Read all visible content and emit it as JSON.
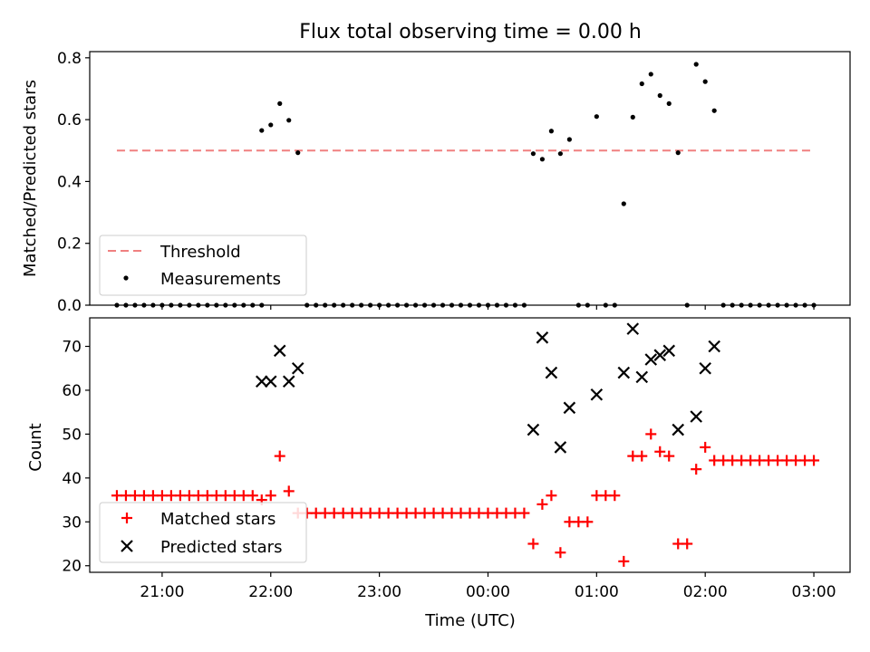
{
  "chart_data": [
    {
      "type": "scatter",
      "title": "Flux total observing time = 0.00 h",
      "xlabel": "",
      "ylabel": "Matched/Predicted stars",
      "xlim": [
        "20:20",
        "03:20"
      ],
      "ylim": [
        0,
        0.82
      ],
      "yticks": [
        0.0,
        0.2,
        0.4,
        0.6,
        0.8
      ],
      "ytick_labels": [
        "0.0",
        "0.2",
        "0.4",
        "0.6",
        "0.8"
      ],
      "legend": {
        "position": "lower-left",
        "entries": [
          "Threshold",
          "Measurements"
        ]
      },
      "threshold": {
        "name": "Threshold",
        "value": 0.5,
        "x_start": "20:35",
        "x_end": "03:00",
        "color": "#f08080"
      },
      "series": [
        {
          "name": "Measurements",
          "marker": "dot",
          "color": "#000000",
          "points": [
            [
              "20:35",
              0
            ],
            [
              "20:40",
              0
            ],
            [
              "20:45",
              0
            ],
            [
              "20:50",
              0
            ],
            [
              "20:55",
              0
            ],
            [
              "21:00",
              0
            ],
            [
              "21:05",
              0
            ],
            [
              "21:10",
              0
            ],
            [
              "21:15",
              0
            ],
            [
              "21:20",
              0
            ],
            [
              "21:25",
              0
            ],
            [
              "21:30",
              0
            ],
            [
              "21:35",
              0
            ],
            [
              "21:40",
              0
            ],
            [
              "21:45",
              0
            ],
            [
              "21:50",
              0
            ],
            [
              "21:55",
              0
            ],
            [
              "21:55",
              0.565
            ],
            [
              "22:00",
              0.583
            ],
            [
              "22:05",
              0.652
            ],
            [
              "22:10",
              0.598
            ],
            [
              "22:15",
              0.493
            ],
            [
              "22:20",
              0
            ],
            [
              "22:25",
              0
            ],
            [
              "22:30",
              0
            ],
            [
              "22:35",
              0
            ],
            [
              "22:40",
              0
            ],
            [
              "22:45",
              0
            ],
            [
              "22:50",
              0
            ],
            [
              "22:55",
              0
            ],
            [
              "23:00",
              0
            ],
            [
              "23:05",
              0
            ],
            [
              "23:10",
              0
            ],
            [
              "23:15",
              0
            ],
            [
              "23:20",
              0
            ],
            [
              "23:25",
              0
            ],
            [
              "23:30",
              0
            ],
            [
              "23:35",
              0
            ],
            [
              "23:40",
              0
            ],
            [
              "23:45",
              0
            ],
            [
              "23:50",
              0
            ],
            [
              "23:55",
              0
            ],
            [
              "00:00",
              0
            ],
            [
              "00:05",
              0
            ],
            [
              "00:10",
              0
            ],
            [
              "00:15",
              0
            ],
            [
              "00:20",
              0
            ],
            [
              "00:25",
              0.49
            ],
            [
              "00:30",
              0.472
            ],
            [
              "00:35",
              0.563
            ],
            [
              "00:40",
              0.49
            ],
            [
              "00:45",
              0.536
            ],
            [
              "00:50",
              0
            ],
            [
              "00:55",
              0
            ],
            [
              "01:00",
              0.61
            ],
            [
              "01:05",
              0
            ],
            [
              "01:10",
              0
            ],
            [
              "01:15",
              0.328
            ],
            [
              "01:20",
              0.608
            ],
            [
              "01:25",
              0.716
            ],
            [
              "01:30",
              0.747
            ],
            [
              "01:35",
              0.678
            ],
            [
              "01:40",
              0.652
            ],
            [
              "01:45",
              0.493
            ],
            [
              "01:50",
              0
            ],
            [
              "01:55",
              0.779
            ],
            [
              "02:00",
              0.723
            ],
            [
              "02:05",
              0.629
            ],
            [
              "02:10",
              0
            ],
            [
              "02:15",
              0
            ],
            [
              "02:20",
              0
            ],
            [
              "02:25",
              0
            ],
            [
              "02:30",
              0
            ],
            [
              "02:35",
              0
            ],
            [
              "02:40",
              0
            ],
            [
              "02:45",
              0
            ],
            [
              "02:50",
              0
            ],
            [
              "02:55",
              0
            ],
            [
              "03:00",
              0
            ]
          ]
        }
      ]
    },
    {
      "type": "scatter",
      "title": "",
      "xlabel": "Time (UTC)",
      "ylabel": "Count",
      "xlim": [
        "20:20",
        "03:20"
      ],
      "ylim": [
        18.5,
        76.5
      ],
      "yticks": [
        20,
        30,
        40,
        50,
        60,
        70
      ],
      "ytick_labels": [
        "20",
        "30",
        "40",
        "50",
        "60",
        "70"
      ],
      "xticks": [
        "21:00",
        "22:00",
        "23:00",
        "00:00",
        "01:00",
        "02:00",
        "03:00"
      ],
      "xtick_labels": [
        "21:00",
        "22:00",
        "23:00",
        "00:00",
        "01:00",
        "02:00",
        "03:00"
      ],
      "legend": {
        "position": "lower-left",
        "entries": [
          "Matched stars",
          "Predicted stars"
        ]
      },
      "series": [
        {
          "name": "Matched stars",
          "marker": "plus",
          "color": "#ff0000",
          "points": [
            [
              "20:35",
              36
            ],
            [
              "20:40",
              36
            ],
            [
              "20:45",
              36
            ],
            [
              "20:50",
              36
            ],
            [
              "20:55",
              36
            ],
            [
              "21:00",
              36
            ],
            [
              "21:05",
              36
            ],
            [
              "21:10",
              36
            ],
            [
              "21:15",
              36
            ],
            [
              "21:20",
              36
            ],
            [
              "21:25",
              36
            ],
            [
              "21:30",
              36
            ],
            [
              "21:35",
              36
            ],
            [
              "21:40",
              36
            ],
            [
              "21:45",
              36
            ],
            [
              "21:50",
              36
            ],
            [
              "21:55",
              35
            ],
            [
              "22:00",
              36
            ],
            [
              "22:05",
              45
            ],
            [
              "22:10",
              37
            ],
            [
              "22:15",
              32
            ],
            [
              "22:20",
              32
            ],
            [
              "22:25",
              32
            ],
            [
              "22:30",
              32
            ],
            [
              "22:35",
              32
            ],
            [
              "22:40",
              32
            ],
            [
              "22:45",
              32
            ],
            [
              "22:50",
              32
            ],
            [
              "22:55",
              32
            ],
            [
              "23:00",
              32
            ],
            [
              "23:05",
              32
            ],
            [
              "23:10",
              32
            ],
            [
              "23:15",
              32
            ],
            [
              "23:20",
              32
            ],
            [
              "23:25",
              32
            ],
            [
              "23:30",
              32
            ],
            [
              "23:35",
              32
            ],
            [
              "23:40",
              32
            ],
            [
              "23:45",
              32
            ],
            [
              "23:50",
              32
            ],
            [
              "23:55",
              32
            ],
            [
              "00:00",
              32
            ],
            [
              "00:05",
              32
            ],
            [
              "00:10",
              32
            ],
            [
              "00:15",
              32
            ],
            [
              "00:20",
              32
            ],
            [
              "00:25",
              25
            ],
            [
              "00:30",
              34
            ],
            [
              "00:35",
              36
            ],
            [
              "00:40",
              23
            ],
            [
              "00:45",
              30
            ],
            [
              "00:50",
              30
            ],
            [
              "00:55",
              30
            ],
            [
              "01:00",
              36
            ],
            [
              "01:05",
              36
            ],
            [
              "01:10",
              36
            ],
            [
              "01:15",
              21
            ],
            [
              "01:20",
              45
            ],
            [
              "01:25",
              45
            ],
            [
              "01:30",
              50
            ],
            [
              "01:35",
              46
            ],
            [
              "01:40",
              45
            ],
            [
              "01:45",
              25
            ],
            [
              "01:50",
              25
            ],
            [
              "01:55",
              42
            ],
            [
              "02:00",
              47
            ],
            [
              "02:05",
              44
            ],
            [
              "02:10",
              44
            ],
            [
              "02:15",
              44
            ],
            [
              "02:20",
              44
            ],
            [
              "02:25",
              44
            ],
            [
              "02:30",
              44
            ],
            [
              "02:35",
              44
            ],
            [
              "02:40",
              44
            ],
            [
              "02:45",
              44
            ],
            [
              "02:50",
              44
            ],
            [
              "02:55",
              44
            ],
            [
              "03:00",
              44
            ]
          ]
        },
        {
          "name": "Predicted stars",
          "marker": "x",
          "color": "#000000",
          "points": [
            [
              "21:55",
              62
            ],
            [
              "22:00",
              62
            ],
            [
              "22:05",
              69
            ],
            [
              "22:10",
              62
            ],
            [
              "22:15",
              65
            ],
            [
              "00:25",
              51
            ],
            [
              "00:30",
              72
            ],
            [
              "00:35",
              64
            ],
            [
              "00:40",
              47
            ],
            [
              "00:45",
              56
            ],
            [
              "01:00",
              59
            ],
            [
              "01:15",
              64
            ],
            [
              "01:20",
              74
            ],
            [
              "01:25",
              63
            ],
            [
              "01:30",
              67
            ],
            [
              "01:35",
              68
            ],
            [
              "01:40",
              69
            ],
            [
              "01:45",
              51
            ],
            [
              "01:55",
              54
            ],
            [
              "02:00",
              65
            ],
            [
              "02:05",
              70
            ]
          ]
        }
      ]
    }
  ]
}
